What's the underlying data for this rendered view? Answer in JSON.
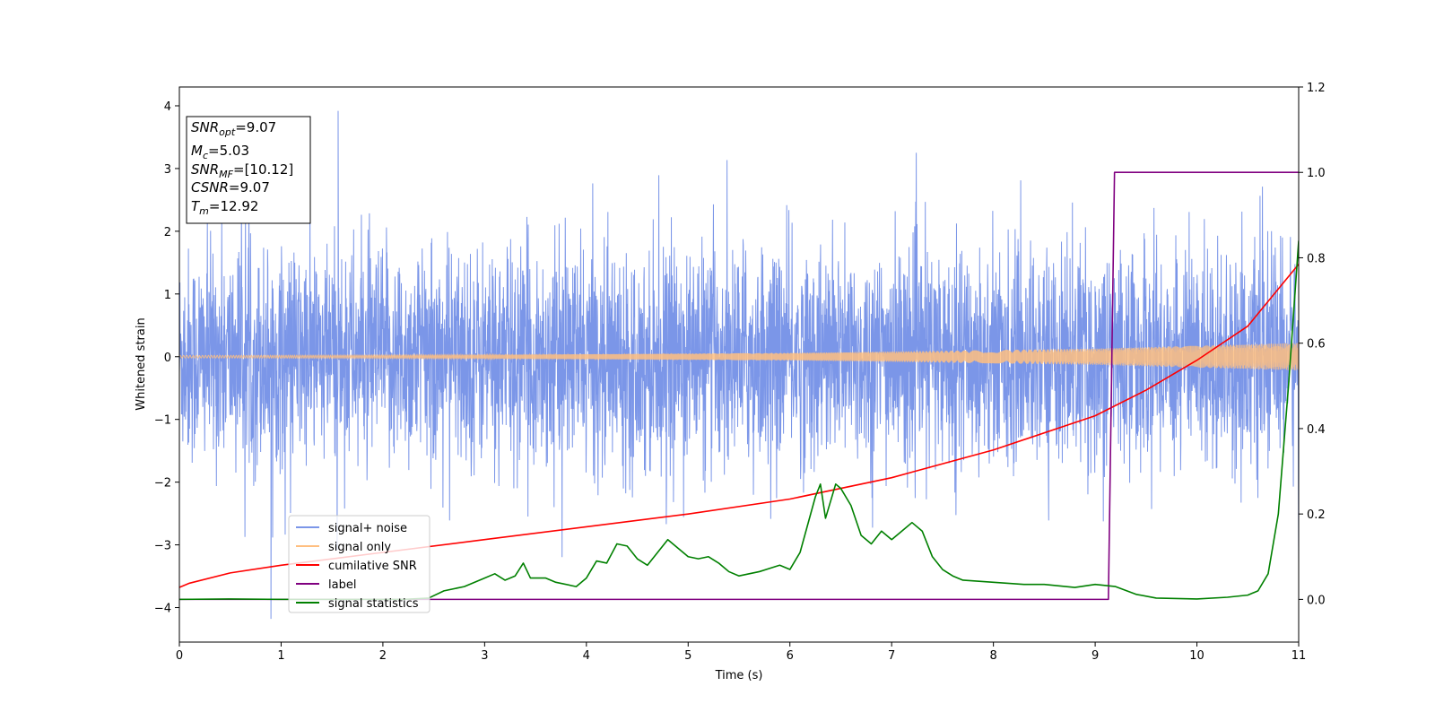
{
  "chart_data": {
    "type": "line",
    "xlabel": "Time (s)",
    "ylabel": "Whitened strain",
    "xlim": [
      0,
      11
    ],
    "ylim_left": [
      -4.55,
      4.3
    ],
    "ylim_right": [
      -0.1,
      1.2
    ],
    "x_ticks": [
      "0",
      "1",
      "2",
      "3",
      "4",
      "5",
      "6",
      "7",
      "8",
      "9",
      "10",
      "11"
    ],
    "left_y_ticks": [
      {
        "value": 4,
        "label": "4"
      },
      {
        "value": 3,
        "label": "3"
      },
      {
        "value": 2,
        "label": "2"
      },
      {
        "value": 1,
        "label": "1"
      },
      {
        "value": 0,
        "label": "0"
      },
      {
        "value": -1,
        "label": "−1"
      },
      {
        "value": -2,
        "label": "−2"
      },
      {
        "value": -3,
        "label": "−3"
      },
      {
        "value": -4,
        "label": "−4"
      }
    ],
    "right_y_ticks": [
      {
        "value": 1.2,
        "label": "1.2"
      },
      {
        "value": 1.0,
        "label": "1.0"
      },
      {
        "value": 0.8,
        "label": "0.8"
      },
      {
        "value": 0.6,
        "label": "0.6"
      },
      {
        "value": 0.4,
        "label": "0.4"
      },
      {
        "value": 0.2,
        "label": "0.2"
      },
      {
        "value": 0.0,
        "label": "0.0"
      }
    ],
    "info_box": [
      {
        "main": "SNR",
        "sub": "opt",
        "rest": "=9.07"
      },
      {
        "main": "M",
        "sub": "c",
        "rest": "=5.03"
      },
      {
        "main": "SNR",
        "sub": "MF",
        "rest": "=[10.12]"
      },
      {
        "main": "CSNR",
        "sub": "",
        "rest": "=9.07"
      },
      {
        "main": "T",
        "sub": "m",
        "rest": "=12.92"
      }
    ],
    "legend_position": "lower-left",
    "series": [
      {
        "name": "signal+ noise",
        "color": "#7b96e8",
        "axis": "left",
        "style": "noise band",
        "sigma": 0.85,
        "typical_peak": 2.9,
        "max_point": {
          "x": 1.56,
          "y": 3.92
        },
        "min_point": {
          "x": 0.9,
          "y": -4.18
        }
      },
      {
        "name": "signal only",
        "color": "#ffbf80",
        "axis": "left",
        "style": "chirp",
        "amplitude_points": [
          [
            0,
            0.02
          ],
          [
            3,
            0.03
          ],
          [
            6,
            0.06
          ],
          [
            9,
            0.13
          ],
          [
            11,
            0.22
          ]
        ]
      },
      {
        "name": "cumilative SNR",
        "color": "#ff0000",
        "axis": "right",
        "points": [
          [
            0,
            0.028
          ],
          [
            0.1,
            0.038
          ],
          [
            0.5,
            0.062
          ],
          [
            1,
            0.08
          ],
          [
            2,
            0.11
          ],
          [
            3,
            0.14
          ],
          [
            4,
            0.17
          ],
          [
            5,
            0.2
          ],
          [
            6,
            0.235
          ],
          [
            7,
            0.285
          ],
          [
            8,
            0.35
          ],
          [
            9,
            0.43
          ],
          [
            9.5,
            0.49
          ],
          [
            10,
            0.56
          ],
          [
            10.5,
            0.64
          ],
          [
            11,
            0.785
          ]
        ]
      },
      {
        "name": "label",
        "color": "#800080",
        "axis": "right",
        "points": [
          [
            0,
            0
          ],
          [
            9.13,
            0
          ],
          [
            9.19,
            1
          ],
          [
            11,
            1
          ]
        ]
      },
      {
        "name": "signal statistics",
        "color": "#008000",
        "axis": "right",
        "points": [
          [
            0,
            0
          ],
          [
            0.5,
            0.001
          ],
          [
            1.0,
            0.0
          ],
          [
            2.2,
            0.0
          ],
          [
            2.45,
            0.003
          ],
          [
            2.6,
            0.02
          ],
          [
            2.8,
            0.03
          ],
          [
            3.0,
            0.05
          ],
          [
            3.1,
            0.06
          ],
          [
            3.2,
            0.045
          ],
          [
            3.3,
            0.055
          ],
          [
            3.38,
            0.085
          ],
          [
            3.45,
            0.05
          ],
          [
            3.6,
            0.05
          ],
          [
            3.7,
            0.04
          ],
          [
            3.9,
            0.03
          ],
          [
            4.0,
            0.05
          ],
          [
            4.1,
            0.09
          ],
          [
            4.2,
            0.085
          ],
          [
            4.3,
            0.13
          ],
          [
            4.4,
            0.125
          ],
          [
            4.5,
            0.095
          ],
          [
            4.6,
            0.08
          ],
          [
            4.7,
            0.11
          ],
          [
            4.8,
            0.14
          ],
          [
            4.9,
            0.12
          ],
          [
            5.0,
            0.1
          ],
          [
            5.1,
            0.095
          ],
          [
            5.2,
            0.1
          ],
          [
            5.3,
            0.085
          ],
          [
            5.4,
            0.065
          ],
          [
            5.5,
            0.055
          ],
          [
            5.7,
            0.065
          ],
          [
            5.9,
            0.08
          ],
          [
            6.0,
            0.07
          ],
          [
            6.1,
            0.11
          ],
          [
            6.25,
            0.24
          ],
          [
            6.3,
            0.27
          ],
          [
            6.35,
            0.19
          ],
          [
            6.45,
            0.27
          ],
          [
            6.5,
            0.26
          ],
          [
            6.6,
            0.22
          ],
          [
            6.7,
            0.15
          ],
          [
            6.8,
            0.13
          ],
          [
            6.9,
            0.16
          ],
          [
            7.0,
            0.14
          ],
          [
            7.1,
            0.16
          ],
          [
            7.2,
            0.18
          ],
          [
            7.3,
            0.16
          ],
          [
            7.4,
            0.1
          ],
          [
            7.5,
            0.07
          ],
          [
            7.6,
            0.055
          ],
          [
            7.7,
            0.045
          ],
          [
            8.0,
            0.04
          ],
          [
            8.3,
            0.035
          ],
          [
            8.5,
            0.035
          ],
          [
            8.8,
            0.028
          ],
          [
            9.0,
            0.035
          ],
          [
            9.2,
            0.03
          ],
          [
            9.4,
            0.012
          ],
          [
            9.6,
            0.003
          ],
          [
            10.0,
            0.001
          ],
          [
            10.3,
            0.005
          ],
          [
            10.5,
            0.01
          ],
          [
            10.6,
            0.02
          ],
          [
            10.7,
            0.06
          ],
          [
            10.8,
            0.2
          ],
          [
            10.9,
            0.5
          ],
          [
            11.0,
            0.84
          ]
        ]
      }
    ]
  }
}
